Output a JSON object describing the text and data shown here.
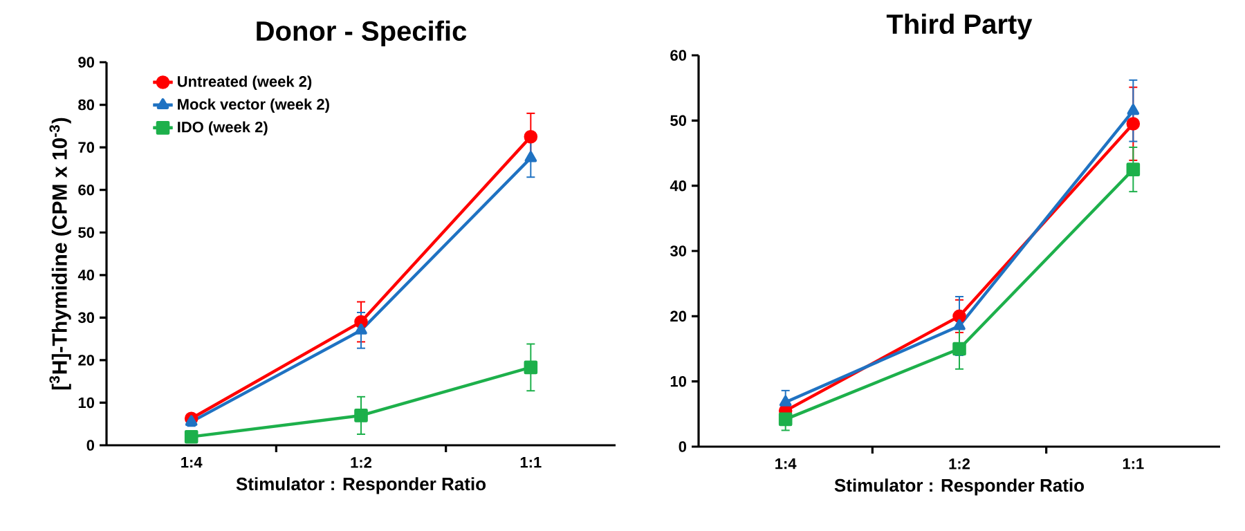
{
  "chart_data": [
    {
      "type": "line",
      "title": "Donor - Specific",
      "xlabel": "Stimulator : Responder Ratio",
      "ylabel": "[$^{3}$H]-Thymidine (CPM x 10$^{-3}$)",
      "categories": [
        "1:4",
        "1:2",
        "1:1"
      ],
      "ylim": [
        0,
        90
      ],
      "yticks": [
        0,
        10,
        20,
        30,
        40,
        50,
        60,
        70,
        80,
        90
      ],
      "legend": "top left",
      "series": [
        {
          "name": "Untreated (week 2)",
          "color": "#ff0000",
          "marker": "circle",
          "values": [
            6.3,
            29,
            72.5
          ],
          "errors": [
            1,
            4.7,
            5.5
          ]
        },
        {
          "name": "Mock vector (week 2)",
          "color": "#1f72c2",
          "marker": "triangle",
          "values": [
            5.5,
            27,
            67.5
          ],
          "errors": [
            1,
            4.2,
            4.5
          ]
        },
        {
          "name": "IDO (week 2)",
          "color": "#1db04b",
          "marker": "square",
          "values": [
            2,
            7,
            18.3
          ],
          "errors": [
            0.8,
            4.4,
            5.5
          ]
        }
      ]
    },
    {
      "type": "line",
      "title": "Third Party",
      "xlabel": "Stimulator : Responder Ratio",
      "categories": [
        "1:4",
        "1:2",
        "1:1"
      ],
      "ylim": [
        0,
        60
      ],
      "yticks": [
        0,
        10,
        20,
        30,
        40,
        50,
        60
      ],
      "series": [
        {
          "color": "#ff0000",
          "marker": "circle",
          "values": [
            5.5,
            20,
            49.5
          ],
          "errors": [
            1,
            2.5,
            5.6
          ]
        },
        {
          "color": "#1f72c2",
          "marker": "triangle",
          "values": [
            6.8,
            18.5,
            51.5
          ],
          "errors": [
            1.8,
            4.5,
            4.7
          ]
        },
        {
          "color": "#1db04b",
          "marker": "square",
          "values": [
            4.2,
            15,
            42.5
          ],
          "errors": [
            1.7,
            3.1,
            3.4
          ]
        }
      ]
    }
  ]
}
